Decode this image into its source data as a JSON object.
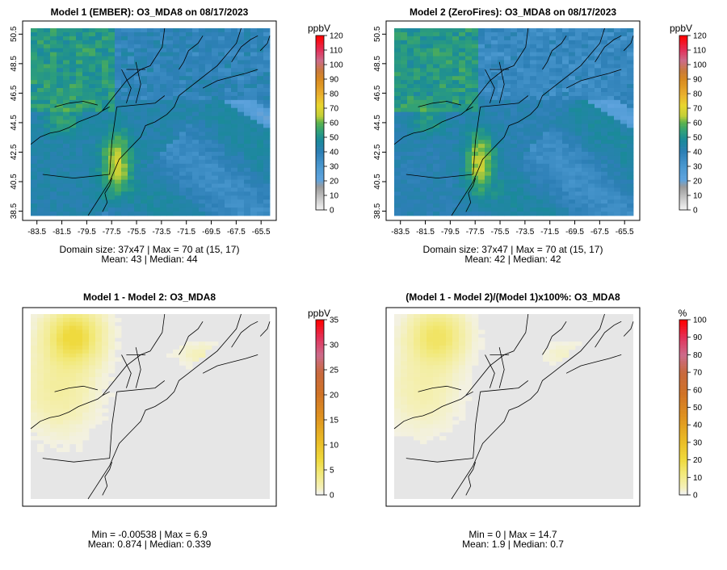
{
  "chart_data": [
    {
      "type": "heatmap",
      "title": "Model 1 (EMBER): O3_MDA8 on 08/17/2023",
      "unit_label": "ppbV",
      "xticks": [
        "-83.5",
        "-81.5",
        "-79.5",
        "-77.5",
        "-75.5",
        "-73.5",
        "-71.5",
        "-69.5",
        "-67.5",
        "-65.5"
      ],
      "yticks": [
        "38.5",
        "40.5",
        "42.5",
        "44.5",
        "46.5",
        "48.5",
        "50.5"
      ],
      "xlim": [
        -84.0,
        -64.8
      ],
      "ylim": [
        38.2,
        50.9
      ],
      "colorbar": {
        "ticks": [
          "0",
          "10",
          "20",
          "30",
          "40",
          "50",
          "60",
          "70",
          "80",
          "90",
          "100",
          "110",
          "120"
        ],
        "min": 0,
        "max": 120
      },
      "stats_line1": "Domain size: 37x47 | Max = 70 at (15, 17)",
      "stats_line2": "Mean: 43 |  Median: 44",
      "palette": "concentration",
      "field": {
        "base": 43,
        "ocean_low": 24,
        "hotspot_peak": 70,
        "north_low": 35
      }
    },
    {
      "type": "heatmap",
      "title": "Model 2 (ZeroFires): O3_MDA8 on 08/17/2023",
      "unit_label": "ppbV",
      "xticks": [
        "-83.5",
        "-81.5",
        "-79.5",
        "-77.5",
        "-75.5",
        "-73.5",
        "-71.5",
        "-69.5",
        "-67.5",
        "-65.5"
      ],
      "yticks": [
        "38.5",
        "40.5",
        "42.5",
        "44.5",
        "46.5",
        "48.5",
        "50.5"
      ],
      "xlim": [
        -84.0,
        -64.8
      ],
      "ylim": [
        38.2,
        50.9
      ],
      "colorbar": {
        "ticks": [
          "0",
          "10",
          "20",
          "30",
          "40",
          "50",
          "60",
          "70",
          "80",
          "90",
          "100",
          "110",
          "120"
        ],
        "min": 0,
        "max": 120
      },
      "stats_line1": "Domain size: 37x47 | Max = 70 at (15, 17)",
      "stats_line2": "Mean: 42 |  Median: 42",
      "palette": "concentration",
      "field": {
        "base": 41,
        "ocean_low": 24,
        "hotspot_peak": 70,
        "north_low": 32
      }
    },
    {
      "type": "heatmap",
      "title": "Model 1 - Model 2: O3_MDA8",
      "unit_label": "ppbV",
      "xticks": [],
      "yticks": [],
      "colorbar": {
        "ticks": [
          "0",
          "5",
          "10",
          "15",
          "20",
          "25",
          "30",
          "35"
        ],
        "min": 0,
        "max": 35
      },
      "stats_line1": "Min = -0.00538 | Max = 6.9",
      "stats_line2": "Mean: 0.874 |  Median: 0.339",
      "palette": "difference",
      "field": {
        "min": -0.00538,
        "max": 6.9
      }
    },
    {
      "type": "heatmap",
      "title": "(Model 1 - Model 2)/(Model 1)x100%: O3_MDA8",
      "unit_label": "%",
      "xticks": [],
      "yticks": [],
      "colorbar": {
        "ticks": [
          "0",
          "10",
          "20",
          "30",
          "40",
          "50",
          "60",
          "70",
          "80",
          "90",
          "100"
        ],
        "min": 0,
        "max": 100
      },
      "stats_line1": "Min = 0 | Max = 14.7",
      "stats_line2": "Mean: 1.9 |  Median: 0.7",
      "palette": "difference",
      "field": {
        "min": 0,
        "max": 14.7
      }
    }
  ]
}
